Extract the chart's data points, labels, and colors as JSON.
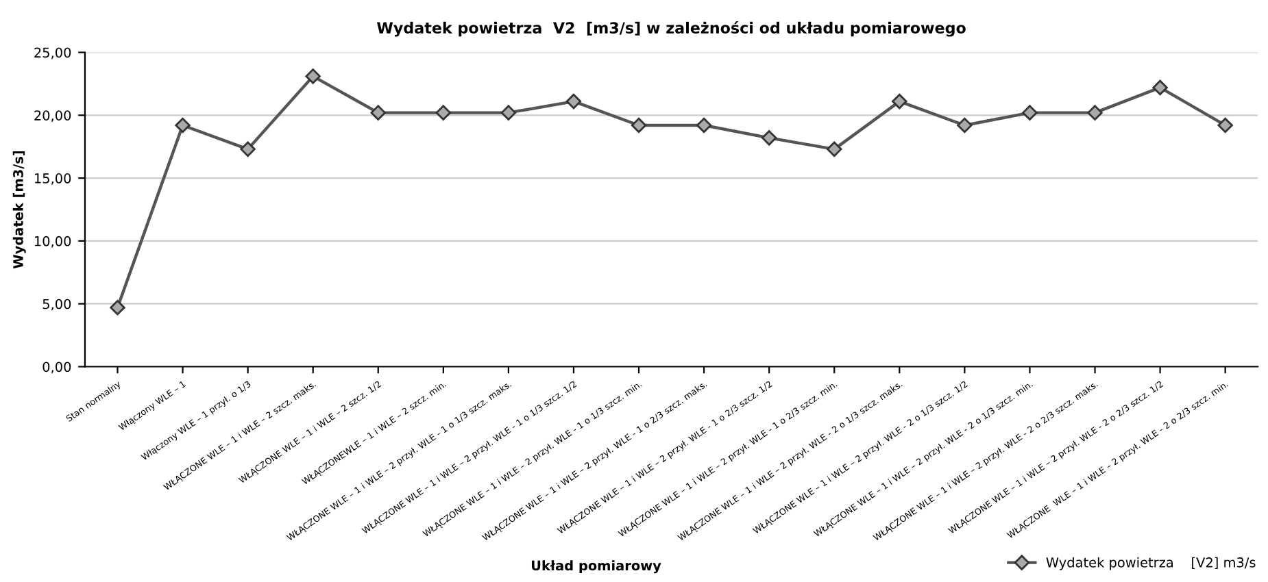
{
  "chart_data": {
    "type": "line",
    "title": "Wydatek powietrza  V2  [m3/s] w zależności od układu pomiarowego",
    "xlabel": "Układ pomiarowy",
    "ylabel": "Wydatek [m3/s]",
    "categories": [
      "Stan normalny",
      "Włączony WLE – 1",
      "Włączony WLE – 1 przył. o 1/3",
      "WŁĄCZONE WLE – 1 i WLE – 2 szcz. maks.",
      "WŁĄCZONE WLE – 1 i WLE – 2 szcz. 1/2",
      "WŁĄCZONEWLE – 1 i WLE – 2 szcz. min.",
      "WŁĄCZONE WLE – 1 i WLE – 2 przył. WLE - 1 o 1/3 szcz. maks.",
      "WŁĄCZONE WLE – 1 i WLE – 2 przył. WLE - 1 o 1/3 szcz. 1/2",
      "WŁĄCZONE WLE – 1 i WLE – 2 przył. WLE - 1 o 1/3 szcz. min.",
      "WŁĄCZONE WLE – 1 i WLE – 2 przył. WLE - 1 o 2/3 szcz. maks.",
      "WŁĄCZONE WLE – 1 i WLE – 2 przył. WLE - 1 o 2/3 szcz. 1/2",
      "WŁĄCZONE WLE – 1 i WLE – 2 przył. WLE - 1 o 2/3 szcz. min.",
      "WŁĄCZONE WLE – 1 i WLE – 2 przył. WLE - 2 o 1/3 szcz. maks.",
      "WŁĄCZONE WLE – 1 i WLE – 2 przył. WLE - 2 o 1/3 szcz. 1/2",
      "WŁĄCZONE WLE – 1 i WLE – 2 przył. WLE - 2 o 1/3 szcz. min.",
      "WŁĄCZONE WLE – 1 i WLE – 2 przył. WLE - 2 o 2/3 szcz. maks.",
      "WŁĄCZONE WLE – 1 i WLE – 2 przył. WLE - 2 o 2/3 szcz. 1/2",
      "WŁĄCZONE  WLE – 1 i WLE – 2 przył. WLE - 2 o 2/3 szcz. min."
    ],
    "series": [
      {
        "name": "Wydatek powietrza    [V2] m3/s",
        "color": "#555555",
        "values": [
          4.7,
          19.2,
          17.3,
          23.1,
          20.2,
          20.2,
          20.2,
          21.1,
          19.2,
          19.2,
          18.2,
          17.3,
          21.1,
          19.2,
          20.2,
          20.2,
          22.2,
          19.2
        ]
      }
    ],
    "ylim": [
      0,
      25
    ],
    "yticks": [
      {
        "value": 0,
        "label": "0,00"
      },
      {
        "value": 5,
        "label": "5,00"
      },
      {
        "value": 10,
        "label": "10,00"
      },
      {
        "value": 15,
        "label": "15,00"
      },
      {
        "value": 20,
        "label": "20,00"
      },
      {
        "value": 25,
        "label": "25,00"
      }
    ],
    "grid": "y",
    "legend": "bottom right",
    "marker": "diamond",
    "line_style": "solid"
  }
}
